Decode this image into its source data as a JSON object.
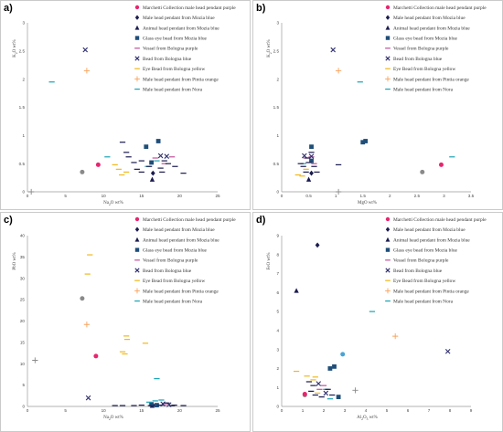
{
  "legend": [
    {
      "key": "s1",
      "label": "Marchetti Collection male head pendant purple",
      "color": "#e8256f",
      "marker": "circle"
    },
    {
      "key": "s2",
      "label": "Male head pendant from Mozia blue",
      "color": "#1b1b4f",
      "marker": "diamond"
    },
    {
      "key": "s3",
      "label": "Animal head pendant from Mozia blue",
      "color": "#1b1b4f",
      "marker": "triangle"
    },
    {
      "key": "s4",
      "label": "Glass eye bead from Mozia blue",
      "color": "#1f4e79",
      "marker": "square"
    },
    {
      "key": "s5",
      "label": "Vessel from Bologna purple",
      "color": "#c0509a",
      "marker": "dash"
    },
    {
      "key": "s6",
      "label": "Bead from Bologna blue",
      "color": "#2e2e6e",
      "marker": "x"
    },
    {
      "key": "s7",
      "label": "Eye Bead from Bologna yellow",
      "color": "#f2b81a",
      "marker": "dash"
    },
    {
      "key": "s8",
      "label": "Male head pendant from Pintia orange",
      "color": "#f7a35c",
      "marker": "plus"
    },
    {
      "key": "s9",
      "label": "Male head pendant from Nora",
      "color": "#1aa3b5",
      "marker": "dash"
    }
  ],
  "chart_data": [
    {
      "panel": "a)",
      "type": "scatter",
      "xlabel": "Na2O wt%",
      "ylabel": "K2O wt%",
      "xlim": [
        0,
        25
      ],
      "ylim": [
        0,
        3
      ],
      "xticks": [
        0,
        5,
        10,
        15,
        20,
        25
      ],
      "yticks": [
        0,
        0.5,
        1,
        1.5,
        2,
        2.5,
        3
      ],
      "series": [
        {
          "key": "grey",
          "color": "#8a8a8a",
          "marker": "circle",
          "points": [
            [
              7.2,
              0.35
            ]
          ]
        },
        {
          "key": "s1",
          "points": [
            [
              9.3,
              0.48
            ]
          ]
        },
        {
          "key": "s2",
          "points": [
            [
              16.5,
              0.33
            ]
          ]
        },
        {
          "key": "s3",
          "points": [
            [
              16.4,
              0.22
            ]
          ]
        },
        {
          "key": "s4",
          "points": [
            [
              15.6,
              0.8
            ],
            [
              16.3,
              0.52
            ],
            [
              17.2,
              0.9
            ]
          ]
        },
        {
          "key": "s5",
          "points": [
            [
              16.8,
              0.6
            ],
            [
              19.0,
              0.62
            ],
            [
              18.0,
              0.5
            ]
          ]
        },
        {
          "key": "s6",
          "points": [
            [
              7.6,
              2.52
            ],
            [
              17.5,
              0.64
            ],
            [
              18.3,
              0.63
            ]
          ]
        },
        {
          "key": "s7",
          "points": [
            [
              11.5,
              0.48
            ],
            [
              12.0,
              0.4
            ],
            [
              12.4,
              0.3
            ],
            [
              13.0,
              0.35
            ]
          ]
        },
        {
          "key": "s8",
          "points": [
            [
              7.8,
              2.15
            ]
          ]
        },
        {
          "key": "s9",
          "points": [
            [
              3.2,
              1.95
            ],
            [
              10.5,
              0.62
            ],
            [
              17.0,
              0.55
            ],
            [
              15.8,
              0.45
            ]
          ]
        },
        {
          "key": "grey",
          "color": "#8a8a8a",
          "marker": "plus",
          "points": [
            [
              0.5,
              0.0
            ]
          ]
        },
        {
          "key": "dark",
          "color": "#1b1b4f",
          "marker": "dash",
          "points": [
            [
              12.5,
              0.88
            ],
            [
              13.3,
              0.62
            ],
            [
              14.0,
              0.52
            ],
            [
              15.0,
              0.35
            ],
            [
              14.4,
              0.4
            ],
            [
              16.0,
              0.45
            ],
            [
              17.7,
              0.35
            ],
            [
              18.5,
              0.5
            ],
            [
              19.4,
              0.45
            ],
            [
              20.5,
              0.33
            ],
            [
              13.0,
              0.7
            ],
            [
              18.0,
              0.55
            ],
            [
              15.0,
              0.55
            ],
            [
              17.5,
              0.42
            ]
          ]
        }
      ]
    },
    {
      "panel": "b)",
      "type": "scatter",
      "xlabel": "MgO wt%",
      "ylabel": "K2O wt%",
      "xlim": [
        0,
        3.5
      ],
      "ylim": [
        0,
        3
      ],
      "xticks": [
        0,
        0.5,
        1,
        1.5,
        2,
        2.5,
        3,
        3.5
      ],
      "yticks": [
        0,
        0.5,
        1,
        1.5,
        2,
        2.5,
        3
      ],
      "series": [
        {
          "key": "grey",
          "color": "#8a8a8a",
          "marker": "circle",
          "points": [
            [
              2.6,
              0.35
            ]
          ]
        },
        {
          "key": "s1",
          "points": [
            [
              2.95,
              0.48
            ]
          ]
        },
        {
          "key": "s2",
          "points": [
            [
              0.55,
              0.33
            ]
          ]
        },
        {
          "key": "s3",
          "points": [
            [
              0.5,
              0.22
            ]
          ]
        },
        {
          "key": "s4",
          "points": [
            [
              0.55,
              0.8
            ],
            [
              0.55,
              0.55
            ],
            [
              1.55,
              0.9
            ],
            [
              1.5,
              0.88
            ]
          ]
        },
        {
          "key": "s5",
          "points": [
            [
              0.45,
              0.6
            ],
            [
              0.55,
              0.62
            ],
            [
              0.6,
              0.5
            ]
          ]
        },
        {
          "key": "s6",
          "points": [
            [
              0.95,
              2.52
            ],
            [
              0.42,
              0.64
            ],
            [
              0.55,
              0.63
            ]
          ]
        },
        {
          "key": "s7",
          "points": [
            [
              0.3,
              0.3
            ],
            [
              0.38,
              0.28
            ],
            [
              0.45,
              0.4
            ]
          ]
        },
        {
          "key": "s8",
          "points": [
            [
              1.05,
              2.15
            ]
          ]
        },
        {
          "key": "s9",
          "points": [
            [
              1.45,
              1.95
            ],
            [
              3.15,
              0.62
            ],
            [
              0.4,
              0.5
            ]
          ]
        },
        {
          "key": "grey",
          "color": "#8a8a8a",
          "marker": "plus",
          "points": [
            [
              1.05,
              0.0
            ]
          ]
        },
        {
          "key": "dark",
          "color": "#1b1b4f",
          "marker": "dash",
          "points": [
            [
              0.35,
              0.5
            ],
            [
              0.4,
              0.45
            ],
            [
              0.45,
              0.35
            ],
            [
              0.5,
              0.52
            ],
            [
              0.6,
              0.45
            ],
            [
              0.65,
              0.35
            ],
            [
              0.55,
              0.7
            ],
            [
              1.05,
              0.48
            ],
            [
              0.48,
              0.6
            ]
          ]
        }
      ]
    },
    {
      "panel": "c)",
      "type": "scatter",
      "xlabel": "Na2O wt%",
      "ylabel": "PbO wt%",
      "xlim": [
        0,
        25
      ],
      "ylim": [
        0,
        40
      ],
      "xticks": [
        0,
        5,
        10,
        15,
        20,
        25
      ],
      "yticks": [
        0,
        5,
        10,
        15,
        20,
        25,
        30,
        35,
        40
      ],
      "series": [
        {
          "key": "grey",
          "color": "#8a8a8a",
          "marker": "circle",
          "points": [
            [
              7.2,
              25.3
            ]
          ]
        },
        {
          "key": "s1",
          "points": [
            [
              9.0,
              11.8
            ]
          ]
        },
        {
          "key": "s2",
          "points": [
            [
              16.5,
              0.3
            ]
          ]
        },
        {
          "key": "s3",
          "points": [
            [
              16.4,
              0.2
            ]
          ]
        },
        {
          "key": "s4",
          "points": [
            [
              16.3,
              0.5
            ],
            [
              17.0,
              0.3
            ]
          ]
        },
        {
          "key": "s5",
          "points": [
            [
              18.0,
              0.4
            ]
          ]
        },
        {
          "key": "s6",
          "points": [
            [
              8.0,
              2.0
            ],
            [
              17.8,
              0.6
            ],
            [
              18.6,
              0.4
            ]
          ]
        },
        {
          "key": "s7",
          "points": [
            [
              8.2,
              35.5
            ],
            [
              7.9,
              31.0
            ],
            [
              12.5,
              12.8
            ],
            [
              13.0,
              16.5
            ],
            [
              13.1,
              15.7
            ],
            [
              15.5,
              14.8
            ],
            [
              12.8,
              12.3
            ]
          ]
        },
        {
          "key": "s8",
          "points": [
            [
              7.8,
              19.2
            ]
          ]
        },
        {
          "key": "s9",
          "points": [
            [
              17.0,
              6.5
            ],
            [
              16.8,
              1.3
            ],
            [
              17.6,
              1.5
            ],
            [
              16.0,
              1.0
            ]
          ]
        },
        {
          "key": "grey",
          "color": "#8a8a8a",
          "marker": "plus",
          "points": [
            [
              1.0,
              10.8
            ]
          ]
        },
        {
          "key": "dark",
          "color": "#1b1b4f",
          "marker": "dash",
          "points": [
            [
              11.5,
              0.2
            ],
            [
              12.5,
              0.2
            ],
            [
              14.0,
              0.2
            ],
            [
              15.0,
              0.3
            ],
            [
              16.2,
              0.2
            ],
            [
              17.5,
              0.3
            ],
            [
              19.0,
              0.2
            ],
            [
              20.5,
              0.2
            ],
            [
              18.3,
              0.8
            ],
            [
              19.3,
              0.3
            ]
          ]
        }
      ]
    },
    {
      "panel": "d)",
      "type": "scatter",
      "xlabel": "Al2O3 wt%",
      "ylabel": "FeO wt%",
      "xlim": [
        0,
        9
      ],
      "ylim": [
        0,
        9
      ],
      "xticks": [
        0,
        1,
        2,
        3,
        4,
        5,
        6,
        7,
        8,
        9
      ],
      "yticks": [
        0,
        1,
        2,
        3,
        4,
        5,
        6,
        7,
        8,
        9
      ],
      "series": [
        {
          "key": "grey",
          "color": "#8a8a8a",
          "marker": "circle",
          "points": [
            [
              1.1,
              0.6
            ]
          ]
        },
        {
          "key": "s1",
          "points": [
            [
              1.1,
              0.65
            ]
          ]
        },
        {
          "key": "s2",
          "points": [
            [
              1.7,
              8.5
            ]
          ]
        },
        {
          "key": "s3",
          "points": [
            [
              0.7,
              6.1
            ]
          ]
        },
        {
          "key": "s4",
          "points": [
            [
              2.3,
              2.0
            ],
            [
              2.5,
              2.1
            ],
            [
              2.7,
              0.5
            ]
          ]
        },
        {
          "key": "s5",
          "points": [
            [
              1.8,
              0.9
            ],
            [
              2.0,
              1.1
            ]
          ]
        },
        {
          "key": "s6",
          "points": [
            [
              7.9,
              2.9
            ],
            [
              1.75,
              1.2
            ],
            [
              2.1,
              0.7
            ]
          ]
        },
        {
          "key": "s7",
          "points": [
            [
              0.7,
              1.85
            ],
            [
              1.2,
              1.6
            ],
            [
              1.5,
              1.4
            ],
            [
              1.7,
              0.7
            ],
            [
              1.6,
              1.55
            ]
          ]
        },
        {
          "key": "s8",
          "points": [
            [
              5.4,
              3.7
            ]
          ]
        },
        {
          "key": "s9",
          "points": [
            [
              4.3,
              5.0
            ],
            [
              2.3,
              0.4
            ],
            [
              2.1,
              0.9
            ]
          ]
        },
        {
          "key": "grey",
          "color": "#8a8a8a",
          "marker": "plus",
          "points": [
            [
              3.5,
              0.85
            ]
          ]
        },
        {
          "key": "grey2",
          "color": "#4aa3d6",
          "marker": "circle",
          "points": [
            [
              2.9,
              2.75
            ]
          ]
        },
        {
          "key": "dark",
          "color": "#1b1b4f",
          "marker": "dash",
          "points": [
            [
              1.4,
              0.8
            ],
            [
              1.6,
              0.6
            ],
            [
              1.9,
              0.5
            ],
            [
              2.2,
              0.9
            ],
            [
              1.5,
              1.1
            ],
            [
              1.3,
              1.3
            ],
            [
              2.4,
              0.6
            ]
          ]
        }
      ]
    }
  ]
}
